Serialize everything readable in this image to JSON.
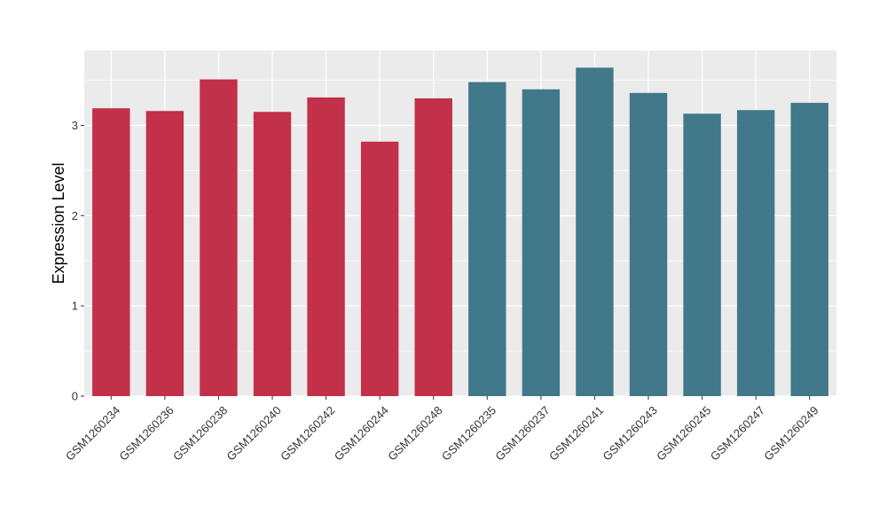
{
  "chart_data": {
    "type": "bar",
    "title": "",
    "xlabel": "",
    "ylabel": "Expression Level",
    "ylim": [
      0,
      3.83
    ],
    "yticks": [
      0,
      1,
      2,
      3
    ],
    "grid": true,
    "legend": "none",
    "colors": {
      "group1": "#C23049",
      "group2": "#41788A",
      "panel": "#EBEBEB",
      "grid": "#FFFFFF"
    },
    "categories": [
      "GSM1260234",
      "GSM1260236",
      "GSM1260238",
      "GSM1260240",
      "GSM1260242",
      "GSM1260244",
      "GSM1260248",
      "GSM1260235",
      "GSM1260237",
      "GSM1260241",
      "GSM1260243",
      "GSM1260245",
      "GSM1260247",
      "GSM1260249"
    ],
    "values": [
      3.19,
      3.16,
      3.51,
      3.15,
      3.31,
      2.82,
      3.3,
      3.48,
      3.4,
      3.64,
      3.36,
      3.13,
      3.17,
      3.25
    ],
    "groups": [
      "group1",
      "group1",
      "group1",
      "group1",
      "group1",
      "group1",
      "group1",
      "group2",
      "group2",
      "group2",
      "group2",
      "group2",
      "group2",
      "group2"
    ]
  }
}
